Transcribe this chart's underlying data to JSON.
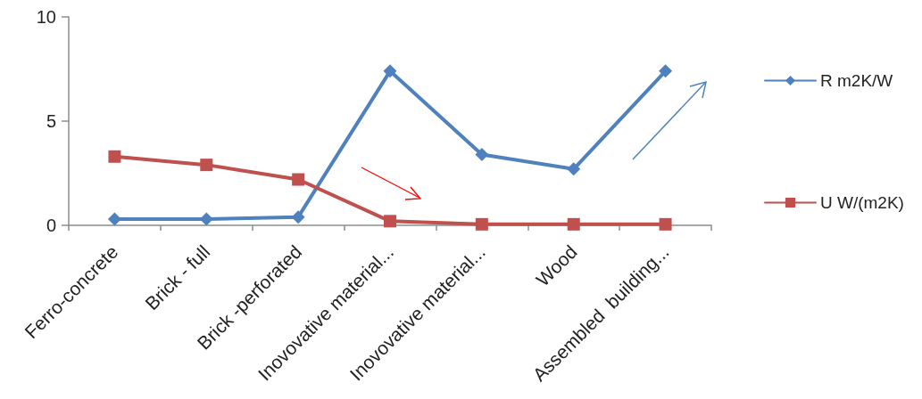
{
  "chart_data": {
    "type": "line",
    "categories": [
      "Ferro-concrete",
      "Brick - full",
      "Brick -perforated",
      "Inovovative material...",
      "Inovovative material...",
      "Wood",
      "Assembled  building..."
    ],
    "series": [
      {
        "name": "R m2K/W",
        "color": "#4f81bd",
        "marker": "diamond",
        "values": [
          0.3,
          0.3,
          0.4,
          7.4,
          3.4,
          2.7,
          7.4
        ]
      },
      {
        "name": "U W/(m2K)",
        "color": "#c0504d",
        "marker": "square",
        "values": [
          3.3,
          2.9,
          2.2,
          0.2,
          0.05,
          0.05,
          0.05
        ]
      }
    ],
    "ylim": [
      0,
      10
    ],
    "yticks": [
      0,
      5,
      10
    ],
    "grid": false,
    "legend": "right",
    "line_style": "solid"
  }
}
